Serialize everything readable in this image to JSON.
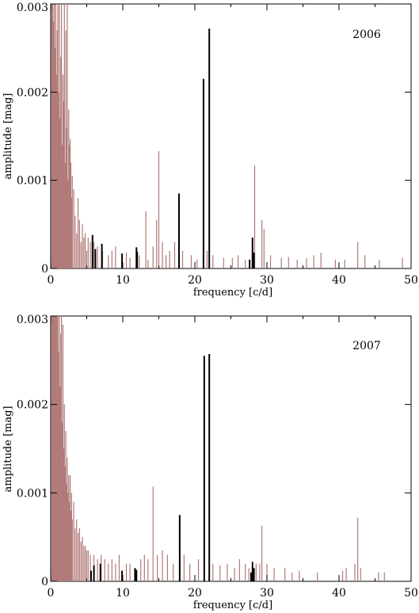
{
  "chart_data": [
    {
      "type": "bar",
      "year_label": "2006",
      "xlabel": "frequency [c/d]",
      "ylabel": "amplitude [mag]",
      "xlim": [
        0,
        50
      ],
      "ylim": [
        0,
        0.003
      ],
      "xticks": [
        0,
        10,
        20,
        30,
        40,
        50
      ],
      "xtick_labels": [
        "0",
        "10",
        "20",
        "30",
        "40",
        "50"
      ],
      "yticks": [
        0,
        0.001,
        0.002,
        0.003
      ],
      "ytick_labels": [
        "0",
        "0.001",
        "0.002",
        "0.003"
      ],
      "colors": {
        "background_spectrum": "#b07a78",
        "identified": "#000000"
      },
      "series": [
        {
          "color": "#b07a78",
          "x": [
            0.1,
            0.2,
            0.3,
            0.4,
            0.5,
            0.6,
            0.7,
            0.8,
            0.9,
            1.0,
            1.1,
            1.2,
            1.3,
            1.4,
            1.5,
            1.6,
            1.7,
            1.8,
            1.9,
            2.0,
            2.1,
            2.2,
            2.3,
            2.4,
            2.5,
            2.6,
            2.7,
            2.8,
            2.9,
            3.0,
            3.2,
            3.4,
            3.6,
            3.8,
            4.0,
            4.2,
            4.4,
            4.6,
            4.8,
            5.0,
            5.2,
            5.5,
            6.0,
            6.5,
            7.2,
            8.0,
            8.5,
            9.0,
            10.5,
            11.0,
            12.3,
            13.2,
            13.5,
            14.2,
            14.7,
            15.0,
            15.5,
            16.0,
            16.5,
            17.2,
            18.3,
            19.5,
            20.3,
            21.7,
            22.5,
            24.0,
            25.2,
            26.0,
            27.0,
            28.3,
            29.3,
            29.6,
            30.5,
            32.0,
            33.0,
            34.2,
            35.5,
            36.5,
            37.5,
            39.5,
            40.8,
            42.6,
            43.6,
            45.6,
            48.8
          ],
          "values": [
            0.003,
            0.003,
            0.003,
            0.0028,
            0.003,
            0.0025,
            0.003,
            0.0022,
            0.0027,
            0.003,
            0.002,
            0.003,
            0.0017,
            0.0024,
            0.003,
            0.0014,
            0.0022,
            0.0019,
            0.003,
            0.0012,
            0.0027,
            0.0016,
            0.003,
            0.001,
            0.0018,
            0.0014,
            0.00147,
            0.0012,
            0.0008,
            0.00105,
            0.0009,
            0.0006,
            0.0004,
            0.0008,
            0.00055,
            0.0003,
            0.0005,
            0.00035,
            0.0004,
            0.0002,
            0.00035,
            0.0003,
            0.0003,
            0.00025,
            0.0002,
            0.00015,
            0.0002,
            0.00025,
            0.00018,
            0.00012,
            0.00015,
            0.00065,
            0.0001,
            0.00025,
            0.00055,
            0.00133,
            0.0003,
            0.00015,
            0.0002,
            0.0003,
            0.0002,
            0.00015,
            0.0001,
            0.0002,
            0.00015,
            0.00012,
            0.00012,
            0.00015,
            0.0001,
            0.00117,
            0.00055,
            0.00045,
            0.00015,
            0.00012,
            0.00013,
            0.0001,
            0.00012,
            0.00015,
            0.00018,
            0.0001,
            0.0001,
            0.0003,
            0.00015,
            0.0001,
            0.00012
          ]
        },
        {
          "color": "#000000",
          "x": [
            5.8,
            6.2,
            7.1,
            9.9,
            11.9,
            12.0,
            17.8,
            21.2,
            22.0,
            27.6,
            28.0,
            28.2
          ],
          "values": [
            0.00038,
            0.00022,
            0.00028,
            0.00017,
            0.00024,
            0.00019,
            0.00085,
            0.00215,
            0.00272,
            0.0001,
            0.00035,
            0.00018
          ]
        }
      ]
    },
    {
      "type": "bar",
      "year_label": "2007",
      "xlabel": "frequency [c/d]",
      "ylabel": "amplitude [mag]",
      "xlim": [
        0,
        50
      ],
      "ylim": [
        0,
        0.003
      ],
      "xticks": [
        0,
        10,
        20,
        30,
        40,
        50
      ],
      "xtick_labels": [
        "0",
        "10",
        "20",
        "30",
        "40",
        "50"
      ],
      "yticks": [
        0,
        0.001,
        0.002,
        0.003
      ],
      "ytick_labels": [
        "0",
        "0.001",
        "0.002",
        "0.003"
      ],
      "colors": {
        "background_spectrum": "#b07a78",
        "identified": "#000000"
      },
      "series": [
        {
          "color": "#b07a78",
          "x": [
            0.1,
            0.2,
            0.3,
            0.4,
            0.5,
            0.6,
            0.7,
            0.8,
            0.9,
            1.0,
            1.1,
            1.2,
            1.3,
            1.4,
            1.5,
            1.6,
            1.7,
            1.8,
            1.9,
            2.0,
            2.1,
            2.2,
            2.3,
            2.4,
            2.5,
            2.6,
            2.7,
            2.8,
            2.9,
            3.0,
            3.2,
            3.4,
            3.6,
            3.8,
            4.0,
            4.2,
            4.4,
            4.6,
            4.8,
            5.0,
            5.2,
            5.5,
            6.0,
            6.5,
            7.0,
            7.5,
            8.0,
            8.5,
            9.0,
            9.5,
            10.5,
            11.0,
            12.5,
            13.0,
            13.5,
            14.2,
            14.8,
            15.5,
            16.2,
            17.0,
            18.5,
            19.3,
            20.5,
            22.5,
            23.5,
            24.5,
            25.5,
            26.2,
            27.0,
            27.5,
            28.5,
            29.0,
            29.3,
            30.0,
            31.0,
            32.5,
            33.5,
            34.5,
            37.0,
            40.5,
            41.0,
            42.2,
            42.6,
            43.0,
            45.5,
            46.3
          ],
          "values": [
            0.003,
            0.003,
            0.003,
            0.003,
            0.003,
            0.003,
            0.003,
            0.003,
            0.003,
            0.003,
            0.0026,
            0.003,
            0.0022,
            0.0028,
            0.003,
            0.0018,
            0.0029,
            0.0015,
            0.002,
            0.0013,
            0.0017,
            0.0011,
            0.0014,
            0.001,
            0.0012,
            0.0009,
            0.0012,
            0.0008,
            0.001,
            0.0007,
            0.0009,
            0.0006,
            0.0007,
            0.00055,
            0.0006,
            0.00045,
            0.0005,
            0.0004,
            0.0004,
            0.00035,
            0.00035,
            0.0003,
            0.0003,
            0.00025,
            0.0003,
            0.00025,
            0.0002,
            0.00025,
            0.0002,
            0.0003,
            0.0002,
            0.0002,
            0.00025,
            0.0003,
            0.00025,
            0.00107,
            0.0003,
            0.00035,
            0.0003,
            0.0002,
            0.0003,
            0.0002,
            0.00025,
            0.0002,
            0.00018,
            0.0002,
            0.00015,
            0.00025,
            0.0002,
            0.00015,
            0.0002,
            0.0002,
            0.00063,
            0.0002,
            0.00015,
            0.00015,
            0.0001,
            0.00012,
            0.0001,
            0.00012,
            0.00015,
            0.0002,
            0.00072,
            0.00015,
            0.0001,
            0.0001
          ]
        },
        {
          "color": "#000000",
          "x": [
            5.6,
            6.0,
            6.9,
            9.9,
            11.7,
            11.9,
            17.9,
            21.3,
            22.0,
            27.8,
            28.0,
            28.2
          ],
          "values": [
            0.00012,
            0.00018,
            0.0002,
            0.00012,
            0.00015,
            0.00013,
            0.00075,
            0.00255,
            0.00257,
            0.0001,
            0.00022,
            0.00015
          ]
        }
      ]
    }
  ]
}
